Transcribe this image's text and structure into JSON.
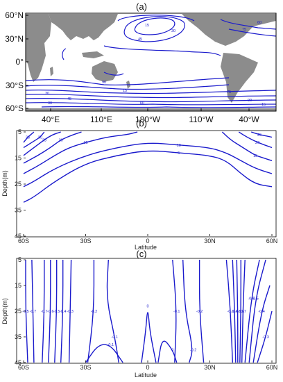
{
  "chart_data": [
    {
      "panel": "(a)",
      "type": "contour",
      "map": true,
      "x_ticks": [
        "40°E",
        "110°E",
        "180°W",
        "110°W",
        "40°W"
      ],
      "y_ticks": [
        "60°N",
        "30°N",
        "0°",
        "30°S",
        "60°S"
      ],
      "contour_labels": [
        "15",
        "30",
        "45",
        "60",
        "75",
        "90"
      ],
      "colors": {
        "contour": "#1a1acc",
        "land": "#8c8c8c",
        "frame": "#000000"
      }
    },
    {
      "panel": "(b)",
      "type": "contour",
      "ylabel": "Depth(m)",
      "xlabel": "Latitude",
      "x_ticks": [
        "60S",
        "30S",
        "0",
        "30N",
        "60N"
      ],
      "y_ticks": [
        "5",
        "15",
        "25",
        "35",
        "45"
      ],
      "xlim": [
        -60,
        60
      ],
      "ylim": [
        5,
        45
      ],
      "y_inverted": true,
      "contour_labels": [
        "5",
        "10",
        "15",
        "20",
        "25",
        "30",
        "35"
      ],
      "contours": [
        {
          "level": "5",
          "points": [
            [
              -60,
              32
            ],
            [
              -55,
              30
            ],
            [
              -45,
              24
            ],
            [
              -30,
              17
            ],
            [
              -15,
              14
            ],
            [
              0,
              12
            ],
            [
              15,
              13
            ],
            [
              30,
              14
            ],
            [
              38,
              16
            ],
            [
              45,
              21
            ],
            [
              52,
              25
            ],
            [
              60,
              26
            ]
          ]
        },
        {
          "level": "10",
          "points": [
            [
              -60,
              26
            ],
            [
              -55,
              24
            ],
            [
              -45,
              19
            ],
            [
              -30,
              14
            ],
            [
              -15,
              11
            ],
            [
              0,
              9
            ],
            [
              15,
              10
            ],
            [
              30,
              11
            ],
            [
              38,
              13
            ],
            [
              45,
              16
            ],
            [
              52,
              19
            ],
            [
              60,
              21
            ]
          ]
        },
        {
          "level": "15",
          "points": [
            [
              -60,
              21
            ],
            [
              -53,
              18
            ],
            [
              -45,
              14
            ],
            [
              -38,
              11
            ],
            [
              -30,
              9
            ],
            [
              -20,
              7
            ],
            [
              -10,
              6
            ],
            [
              -5,
              5
            ]
          ]
        },
        {
          "level": "20",
          "points": [
            [
              -60,
              17
            ],
            [
              -53,
              14
            ],
            [
              -47,
              11
            ],
            [
              -42,
              8
            ],
            [
              -36,
              6
            ],
            [
              -32,
              5
            ]
          ]
        },
        {
          "level": "25",
          "points": [
            [
              -60,
              14
            ],
            [
              -55,
              11
            ],
            [
              -50,
              8
            ],
            [
              -46,
              6
            ],
            [
              -42,
              5
            ]
          ]
        },
        {
          "level": "30",
          "points": [
            [
              -60,
              11
            ],
            [
              -56,
              9
            ],
            [
              -52,
              7
            ],
            [
              -50,
              5
            ]
          ]
        },
        {
          "level": "35",
          "points": [
            [
              -60,
              9
            ],
            [
              -58,
              7
            ],
            [
              -55,
              5
            ]
          ]
        },
        {
          "level": "15",
          "points": [
            [
              36,
              5
            ],
            [
              40,
              8
            ],
            [
              46,
              11
            ],
            [
              52,
              14
            ],
            [
              56,
              15
            ],
            [
              60,
              16
            ]
          ]
        },
        {
          "level": "20",
          "points": [
            [
              44,
              5
            ],
            [
              48,
              7
            ],
            [
              53,
              9
            ],
            [
              60,
              11
            ]
          ]
        },
        {
          "level": "25",
          "points": [
            [
              50,
              5
            ],
            [
              54,
              6
            ],
            [
              60,
              7
            ]
          ]
        }
      ]
    },
    {
      "panel": "(c)",
      "type": "contour",
      "ylabel": "Depth(m)",
      "xlabel": "Latitude",
      "x_ticks": [
        "60S",
        "30S",
        "0",
        "30N",
        "60N"
      ],
      "y_ticks": [
        "5",
        "15",
        "25",
        "35",
        "45"
      ],
      "xlim": [
        -60,
        60
      ],
      "ylim": [
        5,
        45
      ],
      "y_inverted": true,
      "contour_labels": [
        "-0.7",
        "-0.6",
        "-0.5",
        "-0.4",
        "-0.3",
        "-0.2",
        "-0.1",
        "0"
      ],
      "contours": [
        {
          "level": "-0.5",
          "points": [
            [
              -59,
              5
            ],
            [
              -59,
              25
            ],
            [
              -58,
              45
            ]
          ]
        },
        {
          "level": "-0.7",
          "points": [
            [
              -56,
              5
            ],
            [
              -55.5,
              25
            ],
            [
              -55,
              45
            ]
          ]
        },
        {
          "level": "-0.7",
          "points": [
            [
              -50,
              5
            ],
            [
              -50,
              25
            ],
            [
              -51,
              45
            ]
          ]
        },
        {
          "level": "-0.6",
          "points": [
            [
              -47,
              5
            ],
            [
              -47,
              25
            ],
            [
              -48,
              45
            ]
          ]
        },
        {
          "level": "-0.5",
          "points": [
            [
              -44,
              5
            ],
            [
              -44,
              25
            ],
            [
              -45,
              45
            ]
          ]
        },
        {
          "level": "-0.4",
          "points": [
            [
              -41,
              5
            ],
            [
              -41,
              25
            ],
            [
              -42,
              45
            ]
          ]
        },
        {
          "level": "-0.3",
          "points": [
            [
              -37,
              5
            ],
            [
              -37.5,
              25
            ],
            [
              -38,
              45
            ]
          ]
        },
        {
          "level": "-0.2",
          "points": [
            [
              -26,
              5
            ],
            [
              -26,
              25
            ],
            [
              -29,
              45
            ]
          ]
        },
        {
          "level": "-0.1",
          "points": [
            [
              -19,
              5
            ],
            [
              -20,
              20
            ],
            [
              -16,
              35
            ],
            [
              -14,
              45
            ]
          ]
        },
        {
          "level": "-0.1",
          "points": [
            [
              -30,
              45
            ],
            [
              -24,
              38
            ],
            [
              -18,
              38
            ],
            [
              -12,
              45
            ]
          ]
        },
        {
          "level": "0",
          "points": [
            [
              -3,
              45
            ],
            [
              -1,
              33
            ],
            [
              0,
              23
            ],
            [
              1,
              33
            ],
            [
              4,
              45
            ]
          ]
        },
        {
          "level": "0",
          "points": [
            [
              5,
              45
            ],
            [
              7,
              35
            ],
            [
              12,
              40
            ],
            [
              14,
              45
            ]
          ]
        },
        {
          "level": "-0.2",
          "points": [
            [
              17,
              5
            ],
            [
              18,
              25
            ],
            [
              22,
              40
            ],
            [
              20,
              45
            ]
          ]
        },
        {
          "level": "-0.1",
          "points": [
            [
              12,
              5
            ],
            [
              14,
              25
            ],
            [
              13,
              45
            ]
          ]
        },
        {
          "level": "-0.2",
          "points": [
            [
              25,
              5
            ],
            [
              25,
              25
            ],
            [
              27,
              45
            ]
          ]
        },
        {
          "level": "-0.3",
          "points": [
            [
              38,
              5
            ],
            [
              40,
              25
            ],
            [
              41,
              45
            ]
          ]
        },
        {
          "level": "-0.4",
          "points": [
            [
              41,
              5
            ],
            [
              42,
              25
            ],
            [
              42.5,
              45
            ]
          ]
        },
        {
          "level": "-0.5",
          "points": [
            [
              43,
              5
            ],
            [
              43.5,
              25
            ],
            [
              43.5,
              45
            ]
          ]
        },
        {
          "level": "-0.6",
          "points": [
            [
              45,
              5
            ],
            [
              45,
              25
            ],
            [
              44.5,
              45
            ]
          ]
        },
        {
          "level": "-0.7",
          "points": [
            [
              47,
              5
            ],
            [
              46,
              25
            ],
            [
              45.5,
              45
            ]
          ]
        },
        {
          "level": "-0.6",
          "points": [
            [
              54,
              5
            ],
            [
              50,
              20
            ],
            [
              47,
              45
            ]
          ]
        },
        {
          "level": "-0.5",
          "points": [
            [
              57,
              5
            ],
            [
              52,
              20
            ],
            [
              49,
              45
            ]
          ]
        },
        {
          "level": "-0.4",
          "points": [
            [
              59,
              15
            ],
            [
              55,
              25
            ],
            [
              51,
              45
            ]
          ]
        },
        {
          "level": "-0.3",
          "points": [
            [
              60,
              25
            ],
            [
              57,
              35
            ],
            [
              53,
              45
            ]
          ]
        }
      ]
    }
  ]
}
